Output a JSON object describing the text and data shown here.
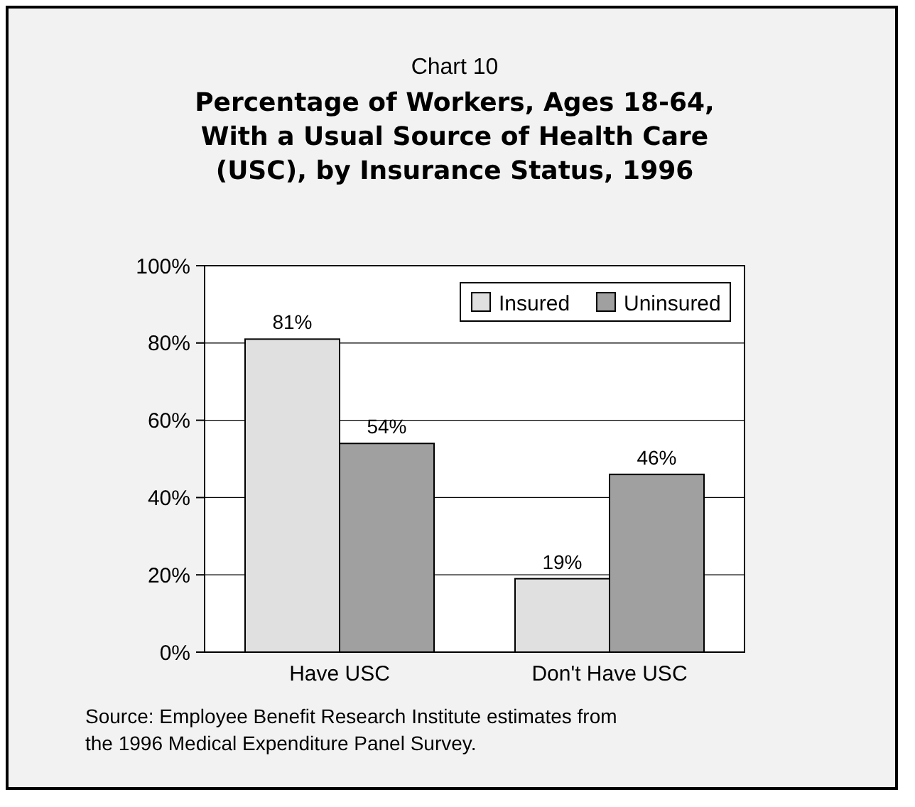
{
  "chart_data": {
    "type": "bar",
    "subtitle": "Chart 10",
    "title": "Percentage of Workers, Ages 18-64,\nWith a Usual Source of Health Care\n(USC), by Insurance Status, 1996",
    "categories": [
      "Have USC",
      "Don't Have USC"
    ],
    "series": [
      {
        "name": "Insured",
        "color": "#e0e0e0",
        "values": [
          81,
          19
        ],
        "value_labels": [
          "81%",
          "19%"
        ]
      },
      {
        "name": "Uninsured",
        "color": "#a0a0a0",
        "values": [
          54,
          46
        ],
        "value_labels": [
          "54%",
          "46%"
        ]
      }
    ],
    "ylim": [
      0,
      100
    ],
    "yticks": [
      {
        "value": 0,
        "label": "0%"
      },
      {
        "value": 20,
        "label": "20%"
      },
      {
        "value": 40,
        "label": "40%"
      },
      {
        "value": 60,
        "label": "60%"
      },
      {
        "value": 80,
        "label": "80%"
      },
      {
        "value": 100,
        "label": "100%"
      }
    ],
    "grid": "y",
    "legend": "top right",
    "annotations": [
      "Source: Employee Benefit Research Institute estimates from\nthe 1996 Medical Expenditure Panel Survey."
    ]
  }
}
